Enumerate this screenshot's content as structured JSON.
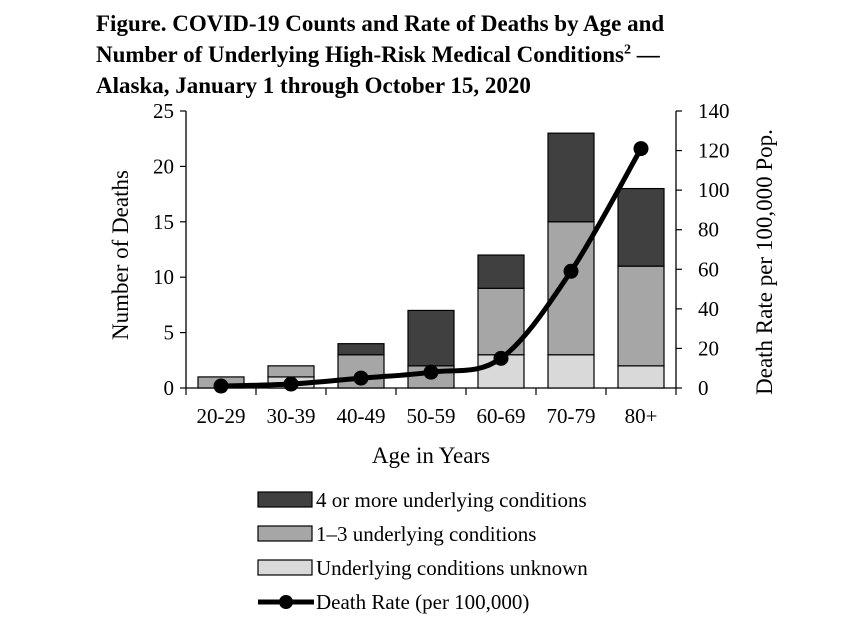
{
  "title": {
    "line1": "Figure. COVID-19 Counts and Rate of Deaths by Age and",
    "line2_text": "Number of Underlying High-Risk Medical Conditions",
    "line2_sup": "2",
    "line2_tail": " —",
    "line3": "Alaska, January 1 through October 15, 2020"
  },
  "chart_data": {
    "type": "bar",
    "stacked": true,
    "categories": [
      "20-29",
      "30-39",
      "40-49",
      "50-59",
      "60-69",
      "70-79",
      "80+"
    ],
    "series": [
      {
        "name": "Underlying conditions unknown",
        "values": [
          0,
          1,
          0,
          0,
          3,
          3,
          2
        ],
        "color": "#d9d9d9"
      },
      {
        "name": "1–3 underlying conditions",
        "values": [
          1,
          1,
          3,
          2,
          6,
          12,
          9
        ],
        "color": "#a6a6a6"
      },
      {
        "name": "4 or more underlying conditions",
        "values": [
          0,
          0,
          1,
          5,
          3,
          8,
          7
        ],
        "color": "#404040"
      }
    ],
    "line_series": {
      "name": "Death Rate (per 100,000)",
      "values": [
        1,
        2,
        5,
        8,
        15,
        59,
        121
      ],
      "axis": "right",
      "color": "#000000"
    },
    "xlabel": "Age in Years",
    "ylabel": "Number of Deaths",
    "y2label": "Death Rate per 100,000 Pop.",
    "ylim": [
      0,
      25
    ],
    "y2lim": [
      0,
      140
    ],
    "yticks": [
      0,
      5,
      10,
      15,
      20,
      25
    ],
    "y2ticks": [
      0,
      20,
      40,
      60,
      80,
      100,
      120,
      140
    ],
    "grid": false,
    "legend_position": "bottom",
    "legend_order": [
      "4 or more underlying conditions",
      "1–3 underlying conditions",
      "Underlying conditions unknown",
      "Death Rate (per 100,000)"
    ]
  }
}
